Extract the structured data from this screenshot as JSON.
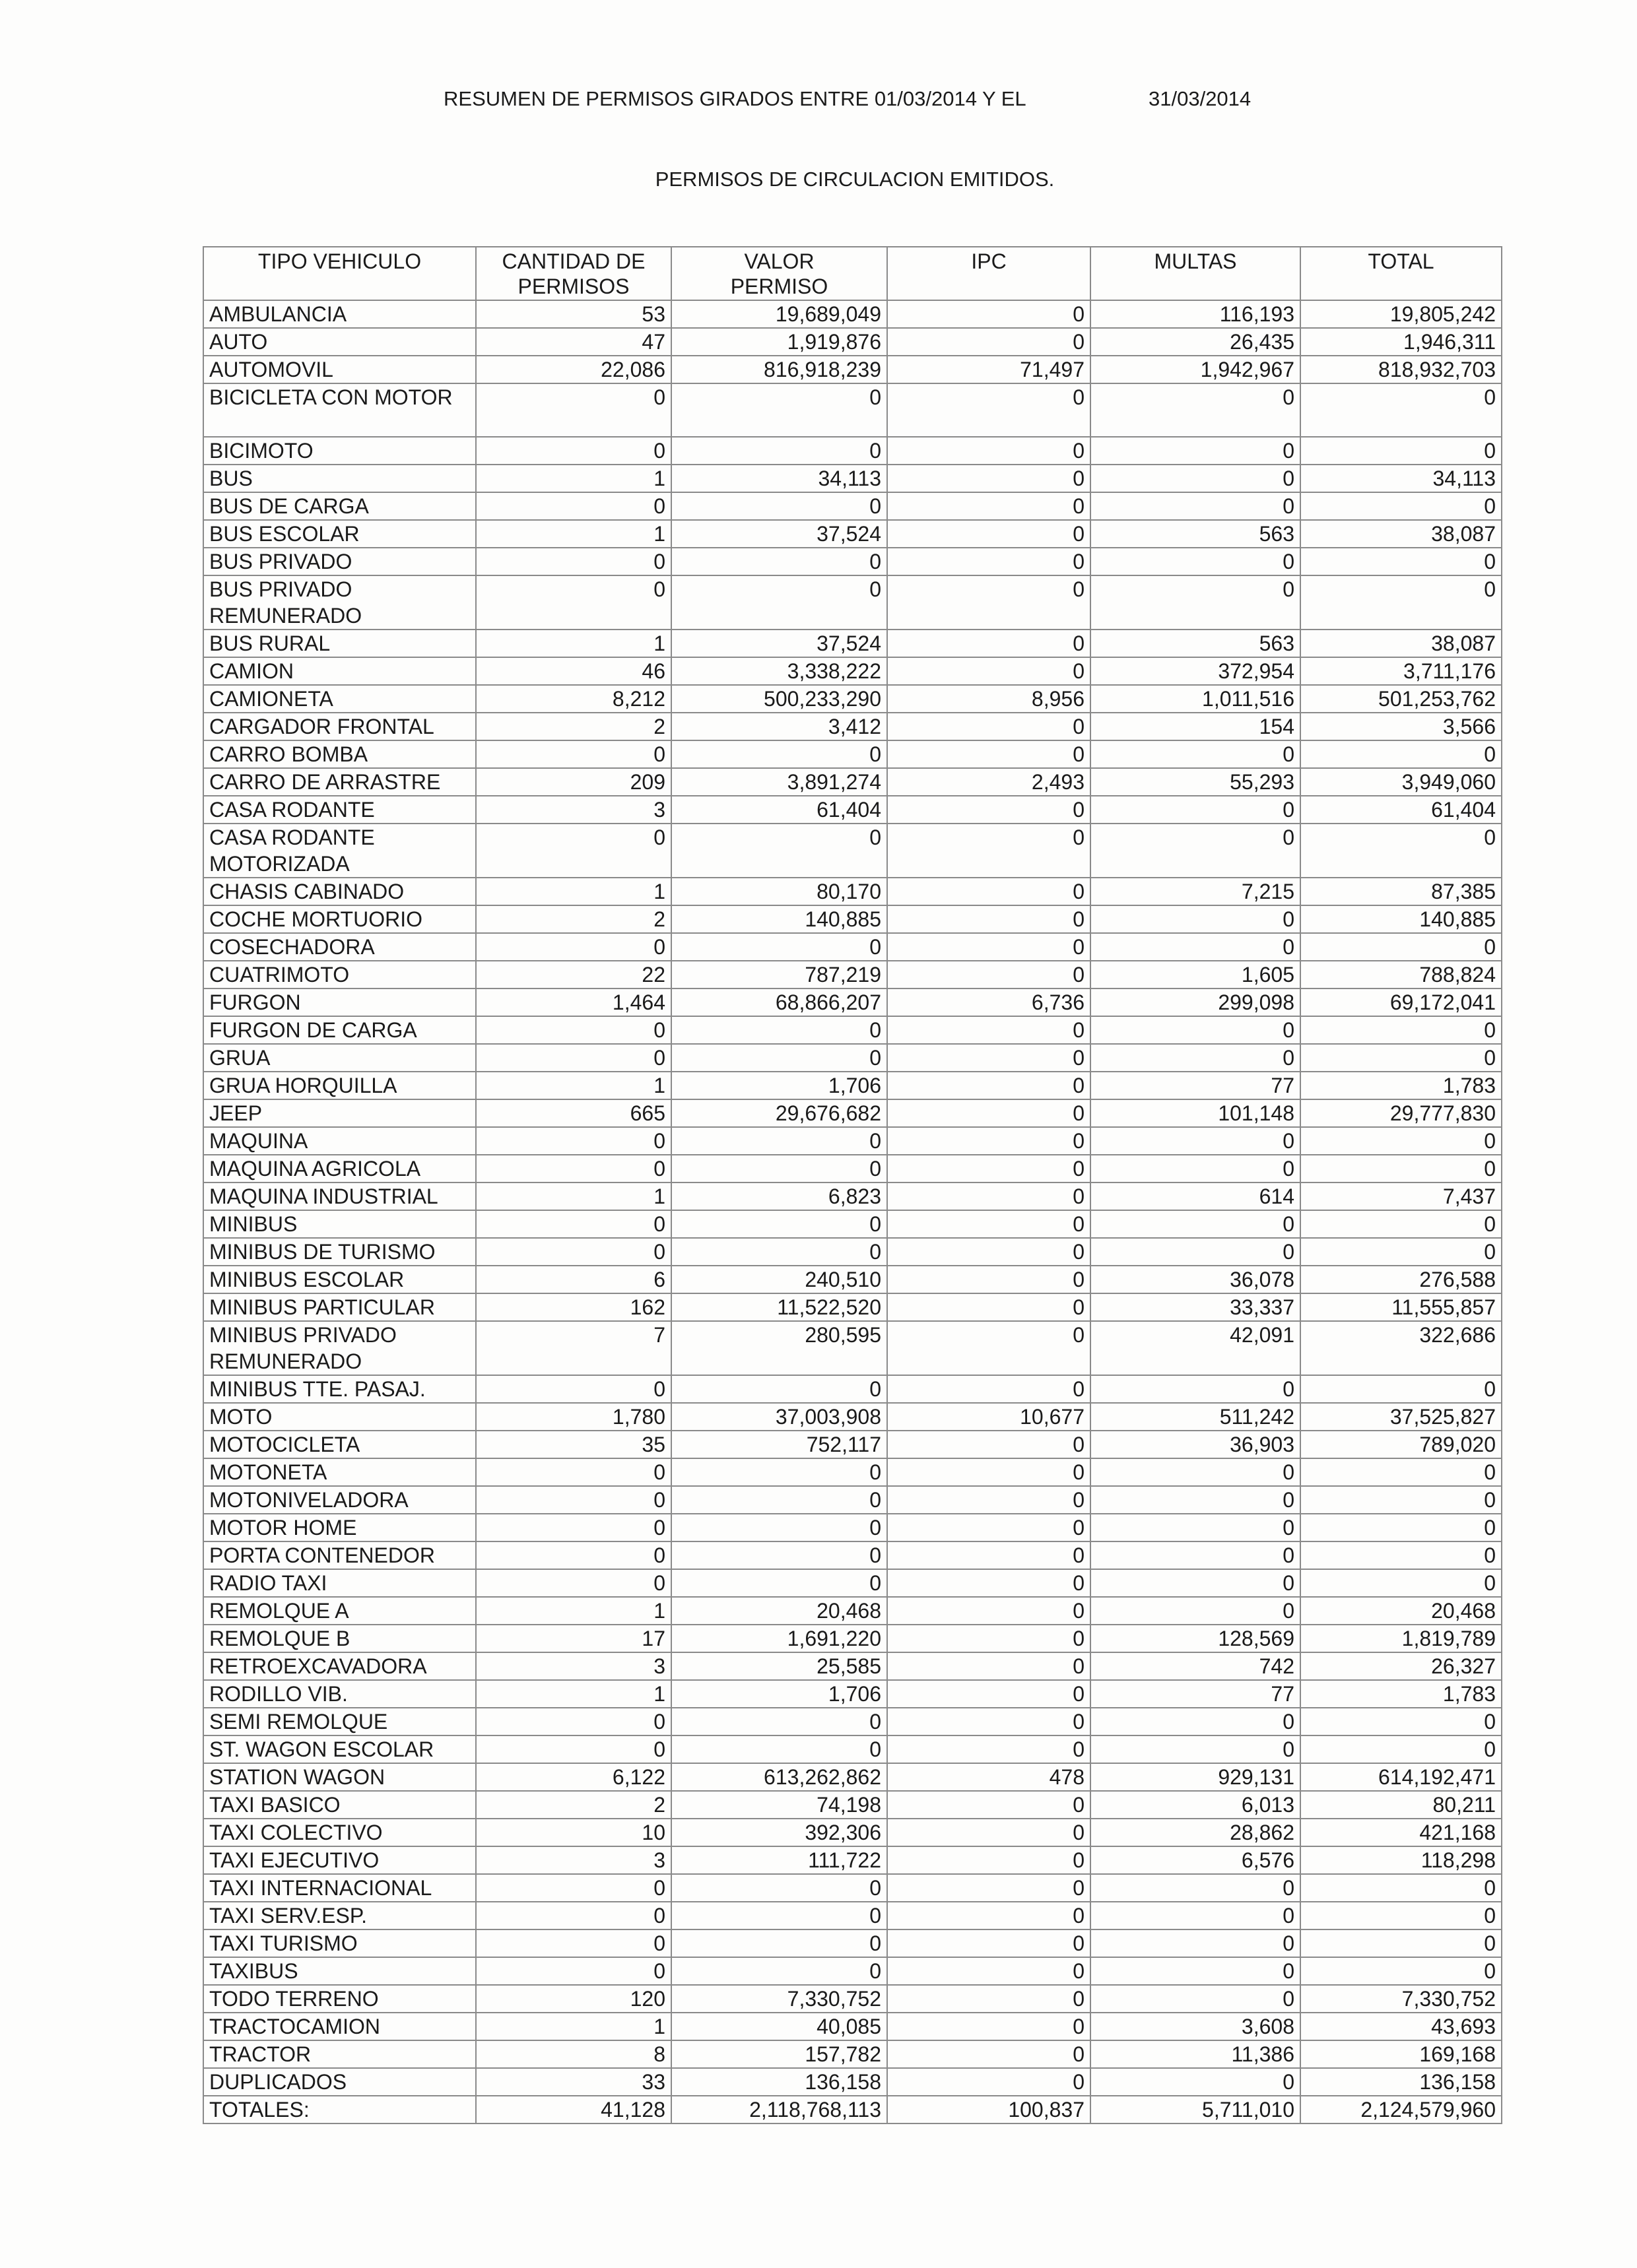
{
  "header": {
    "title": "RESUMEN DE PERMISOS GIRADOS ENTRE 01/03/2014 Y EL",
    "end_date": "31/03/2014",
    "subtitle": "PERMISOS DE CIRCULACION EMITIDOS."
  },
  "table": {
    "columns": [
      "TIPO VEHICULO",
      "CANTIDAD DE PERMISOS",
      "VALOR PERMISO",
      "IPC",
      "MULTAS",
      "TOTAL"
    ],
    "rows": [
      [
        "AMBULANCIA",
        "53",
        "19,689,049",
        "0",
        "116,193",
        "19,805,242"
      ],
      [
        "AUTO",
        "47",
        "1,919,876",
        "0",
        "26,435",
        "1,946,311"
      ],
      [
        "AUTOMOVIL",
        "22,086",
        "816,918,239",
        "71,497",
        "1,942,967",
        "818,932,703"
      ],
      [
        "BICICLETA CON MOTOR",
        "0",
        "0",
        "0",
        "0",
        "0"
      ],
      [
        "BICIMOTO",
        "0",
        "0",
        "0",
        "0",
        "0"
      ],
      [
        "BUS",
        "1",
        "34,113",
        "0",
        "0",
        "34,113"
      ],
      [
        "BUS DE CARGA",
        "0",
        "0",
        "0",
        "0",
        "0"
      ],
      [
        "BUS ESCOLAR",
        "1",
        "37,524",
        "0",
        "563",
        "38,087"
      ],
      [
        "BUS PRIVADO",
        "0",
        "0",
        "0",
        "0",
        "0"
      ],
      [
        "BUS PRIVADO REMUNERADO",
        "0",
        "0",
        "0",
        "0",
        "0"
      ],
      [
        "BUS RURAL",
        "1",
        "37,524",
        "0",
        "563",
        "38,087"
      ],
      [
        "CAMION",
        "46",
        "3,338,222",
        "0",
        "372,954",
        "3,711,176"
      ],
      [
        "CAMIONETA",
        "8,212",
        "500,233,290",
        "8,956",
        "1,011,516",
        "501,253,762"
      ],
      [
        "CARGADOR FRONTAL",
        "2",
        "3,412",
        "0",
        "154",
        "3,566"
      ],
      [
        "CARRO BOMBA",
        "0",
        "0",
        "0",
        "0",
        "0"
      ],
      [
        "CARRO DE ARRASTRE",
        "209",
        "3,891,274",
        "2,493",
        "55,293",
        "3,949,060"
      ],
      [
        "CASA RODANTE",
        "3",
        "61,404",
        "0",
        "0",
        "61,404"
      ],
      [
        "CASA RODANTE MOTORIZADA",
        "0",
        "0",
        "0",
        "0",
        "0"
      ],
      [
        "CHASIS CABINADO",
        "1",
        "80,170",
        "0",
        "7,215",
        "87,385"
      ],
      [
        "COCHE MORTUORIO",
        "2",
        "140,885",
        "0",
        "0",
        "140,885"
      ],
      [
        "COSECHADORA",
        "0",
        "0",
        "0",
        "0",
        "0"
      ],
      [
        "CUATRIMOTO",
        "22",
        "787,219",
        "0",
        "1,605",
        "788,824"
      ],
      [
        "FURGON",
        "1,464",
        "68,866,207",
        "6,736",
        "299,098",
        "69,172,041"
      ],
      [
        "FURGON DE CARGA",
        "0",
        "0",
        "0",
        "0",
        "0"
      ],
      [
        "GRUA",
        "0",
        "0",
        "0",
        "0",
        "0"
      ],
      [
        "GRUA HORQUILLA",
        "1",
        "1,706",
        "0",
        "77",
        "1,783"
      ],
      [
        "JEEP",
        "665",
        "29,676,682",
        "0",
        "101,148",
        "29,777,830"
      ],
      [
        "MAQUINA",
        "0",
        "0",
        "0",
        "0",
        "0"
      ],
      [
        "MAQUINA AGRICOLA",
        "0",
        "0",
        "0",
        "0",
        "0"
      ],
      [
        "MAQUINA INDUSTRIAL",
        "1",
        "6,823",
        "0",
        "614",
        "7,437"
      ],
      [
        "MINIBUS",
        "0",
        "0",
        "0",
        "0",
        "0"
      ],
      [
        "MINIBUS DE TURISMO",
        "0",
        "0",
        "0",
        "0",
        "0"
      ],
      [
        "MINIBUS ESCOLAR",
        "6",
        "240,510",
        "0",
        "36,078",
        "276,588"
      ],
      [
        "MINIBUS PARTICULAR",
        "162",
        "11,522,520",
        "0",
        "33,337",
        "11,555,857"
      ],
      [
        "MINIBUS PRIVADO REMUNERADO",
        "7",
        "280,595",
        "0",
        "42,091",
        "322,686"
      ],
      [
        "MINIBUS TTE. PASAJ.",
        "0",
        "0",
        "0",
        "0",
        "0"
      ],
      [
        "MOTO",
        "1,780",
        "37,003,908",
        "10,677",
        "511,242",
        "37,525,827"
      ],
      [
        "MOTOCICLETA",
        "35",
        "752,117",
        "0",
        "36,903",
        "789,020"
      ],
      [
        "MOTONETA",
        "0",
        "0",
        "0",
        "0",
        "0"
      ],
      [
        "MOTONIVELADORA",
        "0",
        "0",
        "0",
        "0",
        "0"
      ],
      [
        "MOTOR HOME",
        "0",
        "0",
        "0",
        "0",
        "0"
      ],
      [
        "PORTA CONTENEDOR",
        "0",
        "0",
        "0",
        "0",
        "0"
      ],
      [
        "RADIO TAXI",
        "0",
        "0",
        "0",
        "0",
        "0"
      ],
      [
        "REMOLQUE A",
        "1",
        "20,468",
        "0",
        "0",
        "20,468"
      ],
      [
        "REMOLQUE B",
        "17",
        "1,691,220",
        "0",
        "128,569",
        "1,819,789"
      ],
      [
        "RETROEXCAVADORA",
        "3",
        "25,585",
        "0",
        "742",
        "26,327"
      ],
      [
        "RODILLO VIB.",
        "1",
        "1,706",
        "0",
        "77",
        "1,783"
      ],
      [
        "SEMI REMOLQUE",
        "0",
        "0",
        "0",
        "0",
        "0"
      ],
      [
        "ST. WAGON ESCOLAR",
        "0",
        "0",
        "0",
        "0",
        "0"
      ],
      [
        "STATION WAGON",
        "6,122",
        "613,262,862",
        "478",
        "929,131",
        "614,192,471"
      ],
      [
        "TAXI BASICO",
        "2",
        "74,198",
        "0",
        "6,013",
        "80,211"
      ],
      [
        "TAXI COLECTIVO",
        "10",
        "392,306",
        "0",
        "28,862",
        "421,168"
      ],
      [
        "TAXI EJECUTIVO",
        "3",
        "111,722",
        "0",
        "6,576",
        "118,298"
      ],
      [
        "TAXI INTERNACIONAL",
        "0",
        "0",
        "0",
        "0",
        "0"
      ],
      [
        "TAXI SERV.ESP.",
        "0",
        "0",
        "0",
        "0",
        "0"
      ],
      [
        "TAXI TURISMO",
        "0",
        "0",
        "0",
        "0",
        "0"
      ],
      [
        "TAXIBUS",
        "0",
        "0",
        "0",
        "0",
        "0"
      ],
      [
        "TODO TERRENO",
        "120",
        "7,330,752",
        "0",
        "0",
        "7,330,752"
      ],
      [
        "TRACTOCAMION",
        "1",
        "40,085",
        "0",
        "3,608",
        "43,693"
      ],
      [
        "TRACTOR",
        "8",
        "157,782",
        "0",
        "11,386",
        "169,168"
      ],
      [
        "DUPLICADOS",
        "33",
        "136,158",
        "0",
        "0",
        "136,158"
      ]
    ],
    "totals": [
      "TOTALES:",
      "41,128",
      "2,118,768,113",
      "100,837",
      "5,711,010",
      "2,124,579,960"
    ]
  }
}
